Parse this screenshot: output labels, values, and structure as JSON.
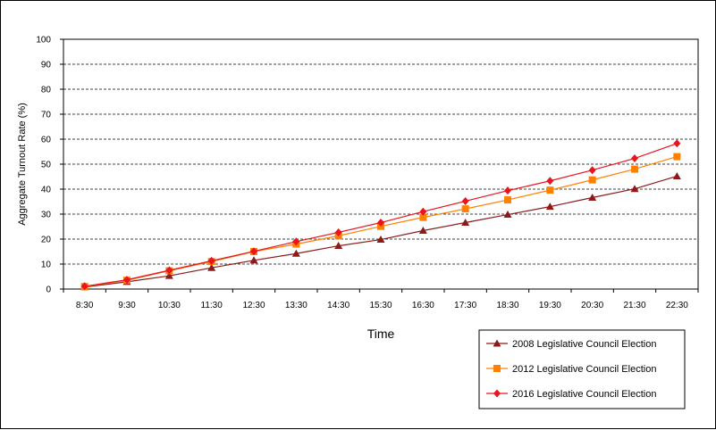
{
  "chart_data": {
    "type": "line",
    "xlabel": "Time",
    "ylabel": "Aggregate  Turnout  Rate  (%)",
    "ylim": [
      0,
      100
    ],
    "yticks": [
      0,
      10,
      20,
      30,
      40,
      50,
      60,
      70,
      80,
      90,
      100
    ],
    "grid": "horizontal dashed",
    "legend_position": "bottom-right",
    "categories": [
      "8:30",
      "9:30",
      "10:30",
      "11:30",
      "12:30",
      "13:30",
      "14:30",
      "15:30",
      "16:30",
      "17:30",
      "18:30",
      "19:30",
      "20:30",
      "21:30",
      "22:30"
    ],
    "series": [
      {
        "name": "2008 Legislative Council Election",
        "color": "#8B1A1A",
        "marker": "triangle",
        "values": [
          0.8,
          2.9,
          5.3,
          8.5,
          11.5,
          14.2,
          17.3,
          19.8,
          23.4,
          26.6,
          29.8,
          33.0,
          36.6,
          40.1,
          45.2
        ]
      },
      {
        "name": "2012 Legislative Council Election",
        "color": "#FF7F00",
        "marker": "square",
        "values": [
          1.0,
          3.5,
          7.3,
          11.0,
          15.0,
          18.0,
          21.3,
          25.1,
          28.7,
          32.1,
          35.7,
          39.6,
          43.7,
          48.0,
          53.0
        ]
      },
      {
        "name": "2016 Legislative Council Election",
        "color": "#E8141E",
        "marker": "diamond",
        "values": [
          1.1,
          3.7,
          7.5,
          11.3,
          15.1,
          19.0,
          22.7,
          26.6,
          31.0,
          35.2,
          39.4,
          43.3,
          47.6,
          52.3,
          58.3
        ]
      }
    ]
  }
}
